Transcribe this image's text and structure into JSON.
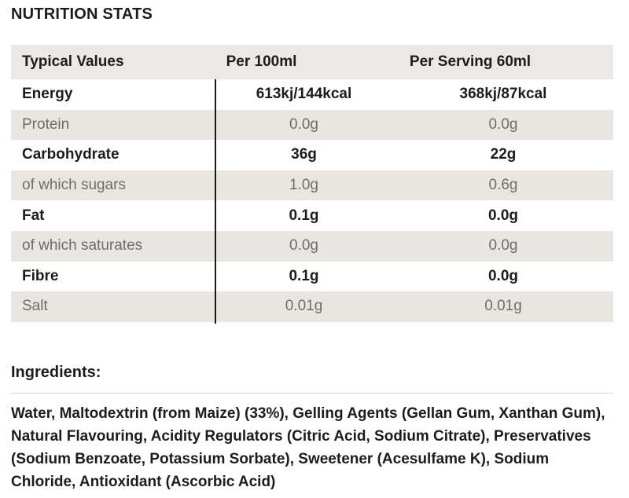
{
  "title": "NUTRITION STATS",
  "colors": {
    "dark_text": "#1e1c1a",
    "muted_text": "#6f6d6a",
    "header_bg": "#ebe8e5",
    "stripe_bg": "#e9e6e2",
    "column_divider": "#1a1a1a",
    "rule": "#d8d6d3"
  },
  "table": {
    "headers": [
      "Typical Values",
      "Per 100ml",
      "Per Serving 60ml"
    ],
    "rows": [
      {
        "label": "Energy",
        "per_100ml": "613kj/144kcal",
        "per_serving": "368kj/87kcal",
        "emphasis": true
      },
      {
        "label": "Protein",
        "per_100ml": "0.0g",
        "per_serving": "0.0g",
        "emphasis": false
      },
      {
        "label": "Carbohydrate",
        "per_100ml": "36g",
        "per_serving": "22g",
        "emphasis": true
      },
      {
        "label": "of which sugars",
        "per_100ml": "1.0g",
        "per_serving": "0.6g",
        "emphasis": false
      },
      {
        "label": "Fat",
        "per_100ml": "0.1g",
        "per_serving": "0.0g",
        "emphasis": true
      },
      {
        "label": "of which saturates",
        "per_100ml": "0.0g",
        "per_serving": "0.0g",
        "emphasis": false
      },
      {
        "label": "Fibre",
        "per_100ml": "0.1g",
        "per_serving": "0.0g",
        "emphasis": true
      },
      {
        "label": "Salt",
        "per_100ml": "0.01g",
        "per_serving": "0.01g",
        "emphasis": false
      }
    ]
  },
  "ingredients": {
    "title": "Ingredients:",
    "text": "Water, Maltodextrin (from Maize) (33%), Gelling Agents (Gellan Gum, Xanthan Gum), Natural Flavouring, Acidity Regulators (Citric Acid, Sodium Citrate), Preservatives (Sodium Benzoate, Potassium Sorbate), Sweetener (Acesulfame K), Sodium Chloride, Antioxidant (Ascorbic Acid)"
  }
}
